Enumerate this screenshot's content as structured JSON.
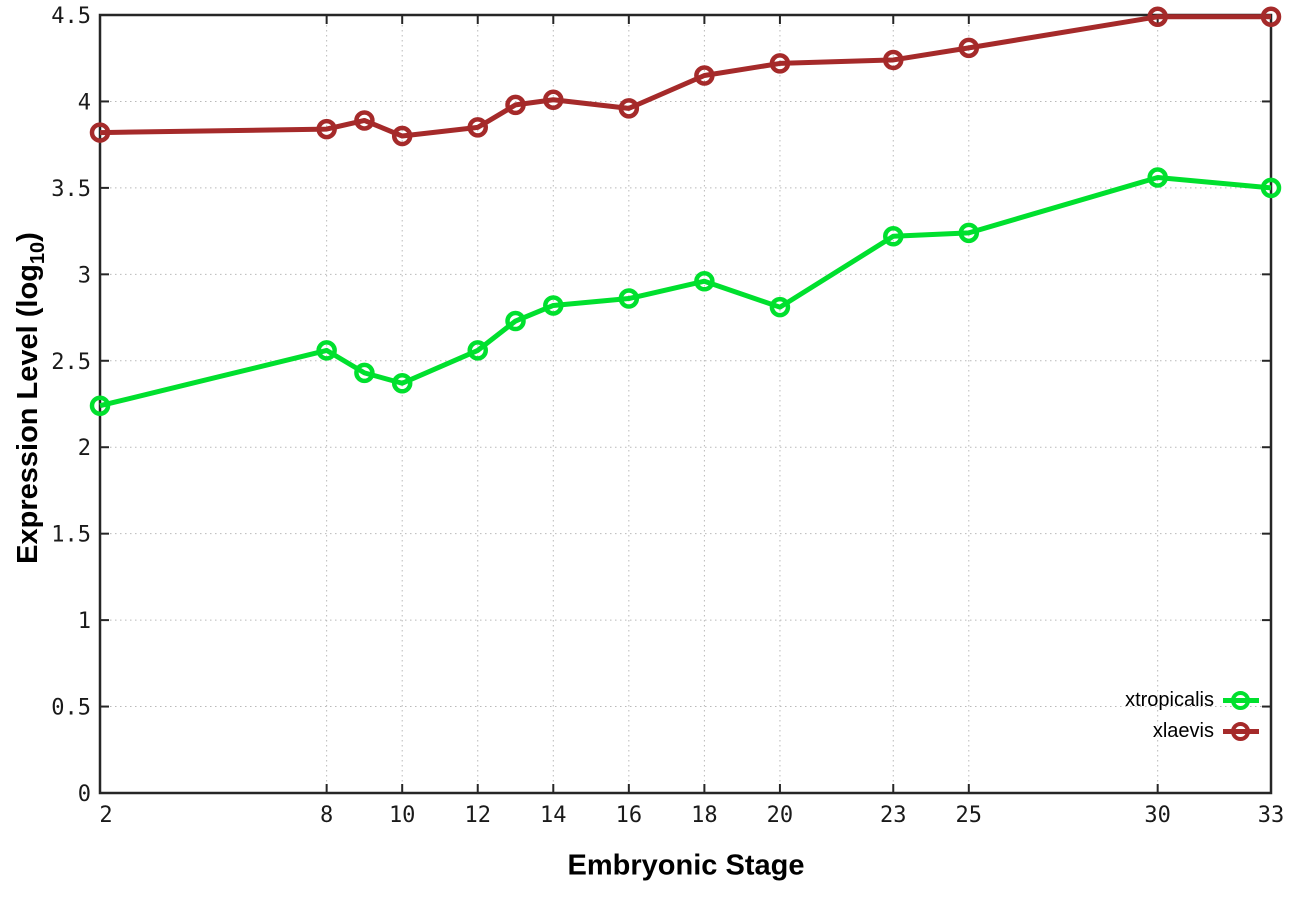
{
  "labels": {
    "xlabel": "Embryonic Stage",
    "ylabel_pre": "Expression Level (log",
    "ylabel_sub": "10",
    "ylabel_post": ")"
  },
  "chart_data": {
    "type": "line",
    "title": "",
    "xlabel": "Embryonic Stage",
    "ylabel": "Expression Level (log10)",
    "x": [
      2,
      8,
      9,
      10,
      12,
      13,
      14,
      16,
      18,
      20,
      23,
      25,
      30,
      33
    ],
    "series": [
      {
        "name": "xtropicalis",
        "color": "#00e02e",
        "values": [
          2.24,
          2.56,
          2.43,
          2.37,
          2.56,
          2.73,
          2.82,
          2.86,
          2.96,
          2.81,
          3.22,
          3.24,
          3.56,
          3.5
        ]
      },
      {
        "name": "xlaevis",
        "color": "#a52a2a",
        "values": [
          3.82,
          3.84,
          3.89,
          3.8,
          3.85,
          3.98,
          4.01,
          3.96,
          4.15,
          4.22,
          4.24,
          4.31,
          4.49,
          4.49
        ]
      }
    ],
    "x_ticks": [
      2,
      8,
      10,
      12,
      14,
      16,
      18,
      20,
      23,
      25,
      30,
      33
    ],
    "y_ticks": [
      0,
      0.5,
      1,
      1.5,
      2,
      2.5,
      3,
      3.5,
      4,
      4.5
    ],
    "xlim": [
      2,
      33
    ],
    "ylim": [
      0,
      4.5
    ],
    "grid": true,
    "legend_position": "bottom-right",
    "background": "#ffffff",
    "axis_color": "#262626",
    "grid_color": "#b9b9b9"
  }
}
